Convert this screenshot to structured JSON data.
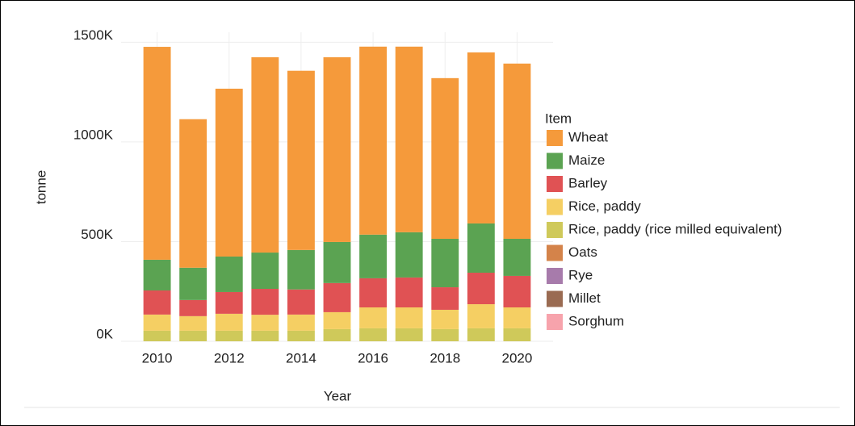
{
  "chart_data": {
    "type": "bar",
    "stacked": true,
    "x_label": "Year",
    "y_label": "tonne",
    "legend_title": "Item",
    "legend": "right",
    "x": [
      2010,
      2011,
      2012,
      2013,
      2014,
      2015,
      2016,
      2017,
      2018,
      2019,
      2020
    ],
    "xlim": [
      2009,
      2021
    ],
    "xticks": [
      2010,
      2012,
      2014,
      2016,
      2018,
      2020
    ],
    "ylim": [
      0,
      1550000
    ],
    "yticks": [
      {
        "value": 0,
        "label": "0K"
      },
      {
        "value": 500000,
        "label": "500K"
      },
      {
        "value": 1000000,
        "label": "1000K"
      },
      {
        "value": 1500000,
        "label": "1500K"
      }
    ],
    "grid": true,
    "series": [
      {
        "name": "Wheat",
        "color": "#f59a3b",
        "values": [
          1068000,
          745000,
          842000,
          980000,
          899000,
          927000,
          943000,
          931000,
          806000,
          858000,
          879000
        ]
      },
      {
        "name": "Maize",
        "color": "#5ba352",
        "values": [
          154000,
          162000,
          178000,
          182000,
          198000,
          206000,
          219000,
          227000,
          243000,
          247000,
          186000
        ]
      },
      {
        "name": "Barley",
        "color": "#e05254",
        "values": [
          121000,
          81000,
          109000,
          130000,
          126000,
          146000,
          146000,
          150000,
          113000,
          158000,
          158000
        ]
      },
      {
        "name": "Rice, paddy",
        "color": "#f5cf63",
        "values": [
          81000,
          73000,
          85000,
          80000,
          81000,
          85000,
          105000,
          105000,
          97000,
          121000,
          105000
        ]
      },
      {
        "name": "Rice, paddy (rice milled equivalent)",
        "color": "#cfc95a",
        "values": [
          53000,
          53000,
          53000,
          53000,
          53000,
          61000,
          65000,
          65000,
          61000,
          65000,
          65000
        ]
      },
      {
        "name": "Oats",
        "color": "#d4834a",
        "values": [
          0,
          0,
          0,
          0,
          0,
          0,
          0,
          0,
          0,
          0,
          0
        ]
      },
      {
        "name": "Rye",
        "color": "#a77bab",
        "values": [
          0,
          0,
          0,
          0,
          0,
          0,
          0,
          0,
          0,
          0,
          0
        ]
      },
      {
        "name": "Millet",
        "color": "#9a6b52",
        "values": [
          0,
          0,
          0,
          0,
          0,
          0,
          0,
          0,
          0,
          0,
          0
        ]
      },
      {
        "name": "Sorghum",
        "color": "#f7a3ac",
        "values": [
          0,
          0,
          0,
          0,
          0,
          0,
          0,
          0,
          0,
          0,
          0
        ]
      }
    ]
  }
}
